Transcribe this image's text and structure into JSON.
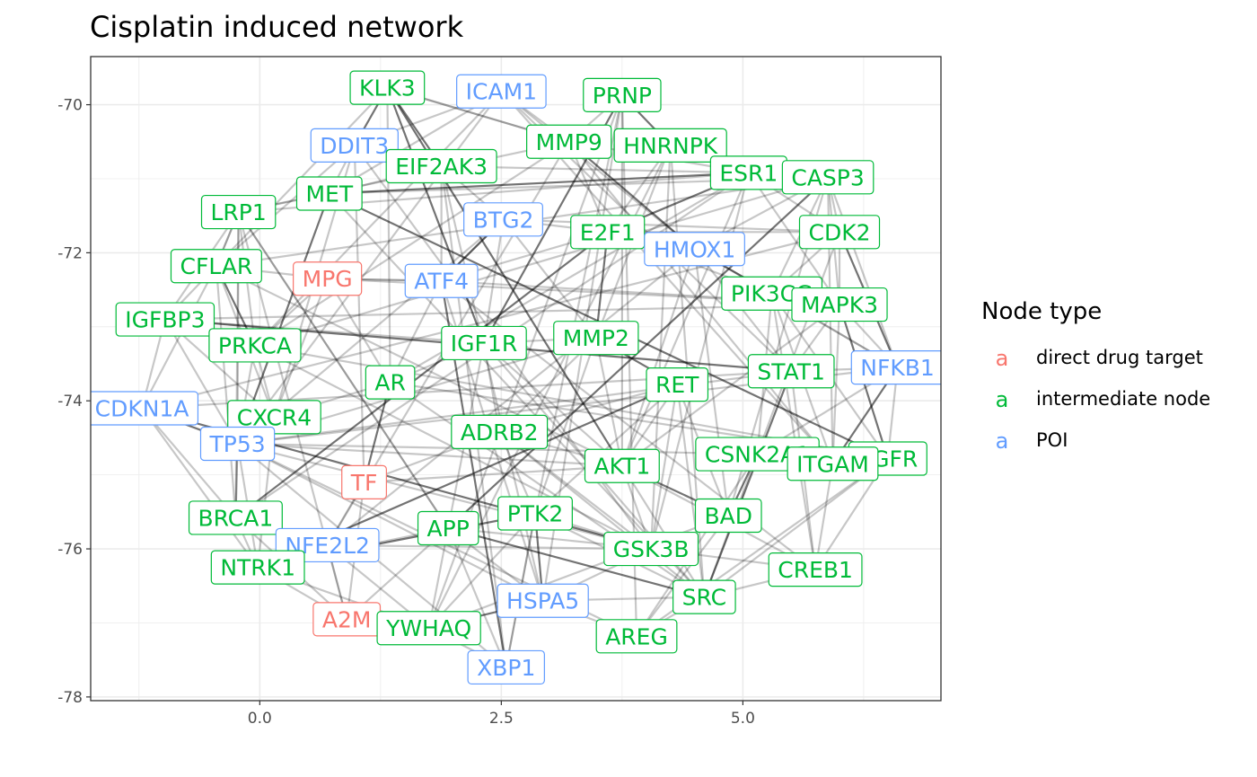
{
  "chart_data": {
    "type": "network",
    "title": "Cisplatin induced network",
    "xlabel": "",
    "ylabel": "",
    "xlim": [
      -1.75,
      7.05
    ],
    "ylim": [
      -78.05,
      -69.35
    ],
    "x_ticks": [
      0.0,
      2.5,
      5.0
    ],
    "x_tick_labels": [
      "0.0",
      "2.5",
      "5.0"
    ],
    "y_ticks": [
      -70,
      -72,
      -74,
      -76,
      -78
    ],
    "y_tick_labels": [
      "-70",
      "-72",
      "-74",
      "-76",
      "-78"
    ],
    "grid": true,
    "legend": {
      "title": "Node type",
      "position": "right",
      "key_glyph": "a",
      "entries": [
        {
          "label": "direct drug target",
          "color": "#f8766d"
        },
        {
          "label": "intermediate node",
          "color": "#00ba38"
        },
        {
          "label": "POI",
          "color": "#619cff"
        }
      ]
    },
    "categories": [
      "direct drug target",
      "intermediate node",
      "POI"
    ],
    "category_colors": {
      "direct drug target": "#f8766d",
      "intermediate node": "#00ba38",
      "POI": "#619cff"
    },
    "nodes": [
      {
        "label": "KLK3",
        "x": 1.32,
        "y": -69.77,
        "type": "intermediate node"
      },
      {
        "label": "ICAM1",
        "x": 2.5,
        "y": -69.82,
        "type": "POI"
      },
      {
        "label": "PRNP",
        "x": 3.75,
        "y": -69.87,
        "type": "intermediate node"
      },
      {
        "label": "DDIT3",
        "x": 0.98,
        "y": -70.55,
        "type": "POI"
      },
      {
        "label": "MMP9",
        "x": 3.2,
        "y": -70.5,
        "type": "intermediate node"
      },
      {
        "label": "HNRNPK",
        "x": 4.25,
        "y": -70.55,
        "type": "intermediate node"
      },
      {
        "label": "EIF2AK3",
        "x": 1.88,
        "y": -70.83,
        "type": "intermediate node"
      },
      {
        "label": "ESR1",
        "x": 5.06,
        "y": -70.92,
        "type": "intermediate node"
      },
      {
        "label": "CASP3",
        "x": 5.88,
        "y": -70.98,
        "type": "intermediate node"
      },
      {
        "label": "MET",
        "x": 0.72,
        "y": -71.2,
        "type": "intermediate node"
      },
      {
        "label": "LRP1",
        "x": -0.22,
        "y": -71.45,
        "type": "intermediate node"
      },
      {
        "label": "BTG2",
        "x": 2.52,
        "y": -71.55,
        "type": "POI"
      },
      {
        "label": "E2F1",
        "x": 3.6,
        "y": -71.72,
        "type": "intermediate node"
      },
      {
        "label": "CDK2",
        "x": 6.0,
        "y": -71.72,
        "type": "intermediate node"
      },
      {
        "label": "HMOX1",
        "x": 4.5,
        "y": -71.95,
        "type": "POI"
      },
      {
        "label": "CFLAR",
        "x": -0.45,
        "y": -72.18,
        "type": "intermediate node"
      },
      {
        "label": "MPG",
        "x": 0.7,
        "y": -72.35,
        "type": "direct drug target"
      },
      {
        "label": "ATF4",
        "x": 1.88,
        "y": -72.38,
        "type": "POI"
      },
      {
        "label": "PIK3CG",
        "x": 5.3,
        "y": -72.55,
        "type": "intermediate node"
      },
      {
        "label": "MAPK3",
        "x": 6.0,
        "y": -72.7,
        "type": "intermediate node"
      },
      {
        "label": "IGFBP3",
        "x": -0.98,
        "y": -72.9,
        "type": "intermediate node"
      },
      {
        "label": "IGF1R",
        "x": 2.32,
        "y": -73.22,
        "type": "intermediate node"
      },
      {
        "label": "MMP2",
        "x": 3.48,
        "y": -73.15,
        "type": "intermediate node"
      },
      {
        "label": "PRKCA",
        "x": -0.05,
        "y": -73.25,
        "type": "intermediate node"
      },
      {
        "label": "NFKB1",
        "x": 6.6,
        "y": -73.55,
        "type": "POI"
      },
      {
        "label": "STAT1",
        "x": 5.5,
        "y": -73.6,
        "type": "intermediate node"
      },
      {
        "label": "AR",
        "x": 1.35,
        "y": -73.75,
        "type": "intermediate node"
      },
      {
        "label": "RET",
        "x": 4.32,
        "y": -73.78,
        "type": "intermediate node"
      },
      {
        "label": "CDKN1A",
        "x": -1.22,
        "y": -74.1,
        "type": "POI"
      },
      {
        "label": "CXCR4",
        "x": 0.15,
        "y": -74.22,
        "type": "intermediate node"
      },
      {
        "label": "ADRB2",
        "x": 2.48,
        "y": -74.42,
        "type": "intermediate node"
      },
      {
        "label": "TP53",
        "x": -0.23,
        "y": -74.58,
        "type": "POI"
      },
      {
        "label": "CSNK2A1",
        "x": 5.15,
        "y": -74.72,
        "type": "intermediate node"
      },
      {
        "label": "EGFR",
        "x": 6.5,
        "y": -74.78,
        "type": "intermediate node"
      },
      {
        "label": "ITGAM",
        "x": 5.93,
        "y": -74.85,
        "type": "intermediate node"
      },
      {
        "label": "AKT1",
        "x": 3.75,
        "y": -74.88,
        "type": "intermediate node"
      },
      {
        "label": "TF",
        "x": 1.08,
        "y": -75.1,
        "type": "direct drug target"
      },
      {
        "label": "BRCA1",
        "x": -0.25,
        "y": -75.58,
        "type": "intermediate node"
      },
      {
        "label": "PTK2",
        "x": 2.85,
        "y": -75.52,
        "type": "intermediate node"
      },
      {
        "label": "BAD",
        "x": 4.85,
        "y": -75.55,
        "type": "intermediate node"
      },
      {
        "label": "APP",
        "x": 1.95,
        "y": -75.72,
        "type": "intermediate node"
      },
      {
        "label": "NFE2L2",
        "x": 0.7,
        "y": -75.95,
        "type": "POI"
      },
      {
        "label": "GSK3B",
        "x": 4.05,
        "y": -76.0,
        "type": "intermediate node"
      },
      {
        "label": "NTRK1",
        "x": -0.02,
        "y": -76.25,
        "type": "intermediate node"
      },
      {
        "label": "CREB1",
        "x": 5.75,
        "y": -76.28,
        "type": "intermediate node"
      },
      {
        "label": "SRC",
        "x": 4.6,
        "y": -76.65,
        "type": "intermediate node"
      },
      {
        "label": "HSPA5",
        "x": 2.93,
        "y": -76.7,
        "type": "POI"
      },
      {
        "label": "A2M",
        "x": 0.9,
        "y": -76.95,
        "type": "direct drug target"
      },
      {
        "label": "YWHAQ",
        "x": 1.75,
        "y": -77.07,
        "type": "intermediate node"
      },
      {
        "label": "AREG",
        "x": 3.9,
        "y": -77.18,
        "type": "intermediate node"
      },
      {
        "label": "XBP1",
        "x": 2.55,
        "y": -77.6,
        "type": "POI"
      }
    ],
    "edges": [
      [
        "TP53",
        "CDKN1A"
      ],
      [
        "TP53",
        "BTG2"
      ],
      [
        "TP53",
        "MMP2"
      ],
      [
        "TP53",
        "AKT1"
      ],
      [
        "TP53",
        "ICAM1"
      ],
      [
        "TP53",
        "BRCA1"
      ],
      [
        "TP53",
        "XBP1"
      ],
      [
        "TP53",
        "MET"
      ],
      [
        "TP53",
        "STAT1"
      ],
      [
        "TP53",
        "NFKB1"
      ],
      [
        "TP53",
        "PRKCA"
      ],
      [
        "TP53",
        "HSPA5"
      ],
      [
        "TP53",
        "AREG"
      ],
      [
        "AKT1",
        "GSK3B"
      ],
      [
        "AKT1",
        "BAD"
      ],
      [
        "AKT1",
        "CREB1"
      ],
      [
        "AKT1",
        "ESR1"
      ],
      [
        "AKT1",
        "MAPK3"
      ],
      [
        "AKT1",
        "IGF1R"
      ],
      [
        "AKT1",
        "PRNP"
      ],
      [
        "AKT1",
        "SRC"
      ],
      [
        "AKT1",
        "KLK3"
      ],
      [
        "AKT1",
        "RET"
      ],
      [
        "AKT1",
        "HMOX1"
      ],
      [
        "AKT1",
        "TF"
      ],
      [
        "AKT1",
        "CFLAR"
      ],
      [
        "SRC",
        "EGFR"
      ],
      [
        "SRC",
        "PTK2"
      ],
      [
        "SRC",
        "STAT1"
      ],
      [
        "SRC",
        "CSNK2A1"
      ],
      [
        "SRC",
        "ADRB2"
      ],
      [
        "SRC",
        "IGF1R"
      ],
      [
        "SRC",
        "MET"
      ],
      [
        "SRC",
        "CREB1"
      ],
      [
        "SRC",
        "RET"
      ],
      [
        "SRC",
        "APP"
      ],
      [
        "SRC",
        "AR"
      ],
      [
        "GSK3B",
        "APP"
      ],
      [
        "GSK3B",
        "CREB1"
      ],
      [
        "GSK3B",
        "ESR1"
      ],
      [
        "GSK3B",
        "NFE2L2"
      ],
      [
        "GSK3B",
        "TP53"
      ],
      [
        "GSK3B",
        "CDKN1A"
      ],
      [
        "GSK3B",
        "PRKCA"
      ],
      [
        "GSK3B",
        "HNRNPK"
      ],
      [
        "GSK3B",
        "DDIT3"
      ],
      [
        "MAPK3",
        "STAT1"
      ],
      [
        "MAPK3",
        "ESR1"
      ],
      [
        "MAPK3",
        "ATF4"
      ],
      [
        "MAPK3",
        "EGFR"
      ],
      [
        "MAPK3",
        "CASP3"
      ],
      [
        "MAPK3",
        "ITGAM"
      ],
      [
        "MAPK3",
        "CDK2"
      ],
      [
        "MAPK3",
        "NFKB1"
      ],
      [
        "MAPK3",
        "IGFBP3"
      ],
      [
        "MAPK3",
        "MPG"
      ],
      [
        "ESR1",
        "E2F1"
      ],
      [
        "ESR1",
        "CDK2"
      ],
      [
        "ESR1",
        "BRCA1"
      ],
      [
        "ESR1",
        "HNRNPK"
      ],
      [
        "ESR1",
        "MMP9"
      ],
      [
        "ESR1",
        "AR"
      ],
      [
        "ESR1",
        "LRP1"
      ],
      [
        "ESR1",
        "MET"
      ],
      [
        "ESR1",
        "EIF2AK3"
      ],
      [
        "CASP3",
        "PRKCA"
      ],
      [
        "CASP3",
        "BAD"
      ],
      [
        "CASP3",
        "CDK2"
      ],
      [
        "CASP3",
        "PIK3CG"
      ],
      [
        "CASP3",
        "CFLAR"
      ],
      [
        "CASP3",
        "APP"
      ],
      [
        "CASP3",
        "MET"
      ],
      [
        "CASP3",
        "HMOX1"
      ],
      [
        "EIF2AK3",
        "ATF4"
      ],
      [
        "EIF2AK3",
        "DDIT3"
      ],
      [
        "EIF2AK3",
        "HSPA5"
      ],
      [
        "EIF2AK3",
        "XBP1"
      ],
      [
        "EIF2AK3",
        "KLK3"
      ],
      [
        "EIF2AK3",
        "BTG2"
      ],
      [
        "NFE2L2",
        "HMOX1"
      ],
      [
        "NFE2L2",
        "A2M"
      ],
      [
        "NFE2L2",
        "TF"
      ],
      [
        "NFE2L2",
        "YWHAQ"
      ],
      [
        "NFE2L2",
        "BRCA1"
      ],
      [
        "NFE2L2",
        "NTRK1"
      ],
      [
        "NFE2L2",
        "MMP9"
      ],
      [
        "PRKCA",
        "IGFBP3"
      ],
      [
        "PRKCA",
        "CXCR4"
      ],
      [
        "PRKCA",
        "MMP9"
      ],
      [
        "PRKCA",
        "EGFR"
      ],
      [
        "PRKCA",
        "LRP1"
      ],
      [
        "PRKCA",
        "CFLAR"
      ],
      [
        "PRKCA",
        "ICAM1"
      ],
      [
        "PRKCA",
        "MPG"
      ],
      [
        "MMP9",
        "KLK3"
      ],
      [
        "MMP9",
        "ICAM1"
      ],
      [
        "MMP9",
        "PRNP"
      ],
      [
        "MMP9",
        "E2F1"
      ],
      [
        "MMP9",
        "HMOX1"
      ],
      [
        "MMP9",
        "LRP1"
      ],
      [
        "MMP9",
        "ITGAM"
      ],
      [
        "IGF1R",
        "IGFBP3"
      ],
      [
        "IGF1R",
        "ADRB2"
      ],
      [
        "IGF1R",
        "MMP2"
      ],
      [
        "IGF1R",
        "AR"
      ],
      [
        "IGF1R",
        "KLK3"
      ],
      [
        "IGF1R",
        "APP"
      ],
      [
        "PTK2",
        "GSK3B"
      ],
      [
        "PTK2",
        "RET"
      ],
      [
        "PTK2",
        "ADRB2"
      ],
      [
        "PTK2",
        "XBP1"
      ],
      [
        "PTK2",
        "PRNP"
      ],
      [
        "PTK2",
        "HSPA5"
      ],
      [
        "PTK2",
        "YWHAQ"
      ],
      [
        "BRCA1",
        "NTRK1"
      ],
      [
        "BRCA1",
        "TP53"
      ],
      [
        "BRCA1",
        "CDKN1A"
      ],
      [
        "BRCA1",
        "LRP1"
      ],
      [
        "BRCA1",
        "CFLAR"
      ],
      [
        "BRCA1",
        "E2F1"
      ],
      [
        "BRCA1",
        "A2M"
      ],
      [
        "CREB1",
        "ITGAM"
      ],
      [
        "CREB1",
        "EGFR"
      ],
      [
        "CREB1",
        "PIK3CG"
      ],
      [
        "CREB1",
        "ATF4"
      ],
      [
        "CREB1",
        "STAT1"
      ],
      [
        "HNRNPK",
        "PRNP"
      ],
      [
        "HNRNPK",
        "E2F1"
      ],
      [
        "HNRNPK",
        "ESR1"
      ],
      [
        "HNRNPK",
        "MMP2"
      ],
      [
        "HNRNPK",
        "SRC"
      ],
      [
        "HNRNPK",
        "YWHAQ"
      ],
      [
        "CSNK2A1",
        "CDK2"
      ],
      [
        "CSNK2A1",
        "BAD"
      ],
      [
        "CSNK2A1",
        "NFKB1"
      ],
      [
        "CSNK2A1",
        "TP53"
      ],
      [
        "CSNK2A1",
        "PIK3CG"
      ],
      [
        "CSNK2A1",
        "AREG"
      ],
      [
        "AR",
        "KLK3"
      ],
      [
        "AR",
        "CXCR4"
      ],
      [
        "AR",
        "TF"
      ],
      [
        "AR",
        "ATF4"
      ],
      [
        "AR",
        "EGFR"
      ],
      [
        "AR",
        "MPG"
      ],
      [
        "PRNP",
        "AREG"
      ],
      [
        "PRNP",
        "HSPA5"
      ],
      [
        "PRNP",
        "YWHAQ"
      ],
      [
        "PRNP",
        "IGF1R"
      ],
      [
        "LRP1",
        "A2M"
      ],
      [
        "LRP1",
        "APP"
      ],
      [
        "LRP1",
        "CFLAR"
      ],
      [
        "LRP1",
        "TP53"
      ],
      [
        "LRP1",
        "IGFBP3"
      ],
      [
        "STAT1",
        "CDKN1A"
      ],
      [
        "STAT1",
        "IGFBP3"
      ],
      [
        "STAT1",
        "ICAM1"
      ],
      [
        "STAT1",
        "NFKB1"
      ],
      [
        "STAT1",
        "HMOX1"
      ],
      [
        "CDK2",
        "E2F1"
      ],
      [
        "CDK2",
        "CDKN1A"
      ],
      [
        "CDK2",
        "PIK3CG"
      ],
      [
        "CDK2",
        "NFKB1"
      ],
      [
        "APP",
        "A2M"
      ],
      [
        "APP",
        "LRP1"
      ],
      [
        "APP",
        "YWHAQ"
      ],
      [
        "APP",
        "HSPA5"
      ],
      [
        "APP",
        "NTRK1"
      ],
      [
        "RET",
        "GSK3B"
      ],
      [
        "RET",
        "NTRK1"
      ],
      [
        "RET",
        "BAD"
      ],
      [
        "RET",
        "ADRB2"
      ],
      [
        "EGFR",
        "AREG"
      ],
      [
        "EGFR",
        "ITGAM"
      ],
      [
        "EGFR",
        "PIK3CG"
      ],
      [
        "EGFR",
        "NFKB1"
      ],
      [
        "EGFR",
        "MET"
      ],
      [
        "CXCR4",
        "CFLAR"
      ],
      [
        "CXCR4",
        "MPG"
      ],
      [
        "CXCR4",
        "NTRK1"
      ],
      [
        "CXCR4",
        "DDIT3"
      ],
      [
        "E2F1",
        "BTG2"
      ],
      [
        "E2F1",
        "ATF4"
      ],
      [
        "E2F1",
        "MMP2"
      ],
      [
        "E2F1",
        "HMOX1"
      ],
      [
        "MET",
        "DDIT3"
      ],
      [
        "MET",
        "LRP1"
      ],
      [
        "MET",
        "ICAM1"
      ],
      [
        "MET",
        "EIF2AK3"
      ],
      [
        "YWHAQ",
        "BAD"
      ],
      [
        "YWHAQ",
        "HSPA5"
      ],
      [
        "YWHAQ",
        "XBP1"
      ],
      [
        "YWHAQ",
        "NTRK1"
      ],
      [
        "ADRB2",
        "TF"
      ],
      [
        "ADRB2",
        "GSK3B"
      ],
      [
        "ADRB2",
        "AKT1"
      ],
      [
        "ADRB2",
        "MMP2"
      ],
      [
        "NFKB1",
        "ITGAM"
      ],
      [
        "NFKB1",
        "PIK3CG"
      ],
      [
        "NFKB1",
        "HMOX1"
      ],
      [
        "NFKB1",
        "CASP3"
      ],
      [
        "AREG",
        "SRC"
      ],
      [
        "AREG",
        "BAD"
      ],
      [
        "AREG",
        "HSPA5"
      ],
      [
        "MMP2",
        "RET"
      ],
      [
        "MMP2",
        "BTG2"
      ],
      [
        "MMP2",
        "PTK2"
      ],
      [
        "MMP2",
        "AKT1"
      ],
      [
        "DDIT3",
        "CFLAR"
      ],
      [
        "DDIT3",
        "TF"
      ],
      [
        "DDIT3",
        "ICAM1"
      ],
      [
        "KLK3",
        "DDIT3"
      ],
      [
        "KLK3",
        "MMP9"
      ],
      [
        "KLK3",
        "IGFBP3"
      ],
      [
        "BTG2",
        "IGF1R"
      ],
      [
        "BTG2",
        "ATF4"
      ],
      [
        "BTG2",
        "CDK2"
      ],
      [
        "XBP1",
        "APP"
      ],
      [
        "XBP1",
        "ATF4"
      ],
      [
        "XBP1",
        "PTK2"
      ],
      [
        "HSPA5",
        "ATF4"
      ],
      [
        "HSPA5",
        "GSK3B"
      ],
      [
        "HSPA5",
        "SRC"
      ],
      [
        "NTRK1",
        "TP53"
      ],
      [
        "NTRK1",
        "CDKN1A"
      ],
      [
        "NTRK1",
        "PTK2"
      ],
      [
        "IGFBP3",
        "CDKN1A"
      ],
      [
        "IGFBP3",
        "TP53"
      ],
      [
        "IGFBP3",
        "CXCR4"
      ],
      [
        "ITGAM",
        "ICAM1"
      ],
      [
        "ITGAM",
        "PIK3CG"
      ],
      [
        "ITGAM",
        "CASP3"
      ],
      [
        "PIK3CG",
        "HMOX1"
      ],
      [
        "PIK3CG",
        "E2F1"
      ],
      [
        "MPG",
        "CFLAR"
      ],
      [
        "MPG",
        "ATF4"
      ],
      [
        "HMOX1",
        "ICAM1"
      ],
      [
        "HMOX1",
        "BAD"
      ],
      [
        "ATF4",
        "MPG"
      ],
      [
        "ATF4",
        "BTG2"
      ],
      [
        "A2M",
        "TF"
      ],
      [
        "A2M",
        "NTRK1"
      ],
      [
        "CFLAR",
        "CDKN1A"
      ],
      [
        "CFLAR",
        "LRP1"
      ]
    ]
  }
}
